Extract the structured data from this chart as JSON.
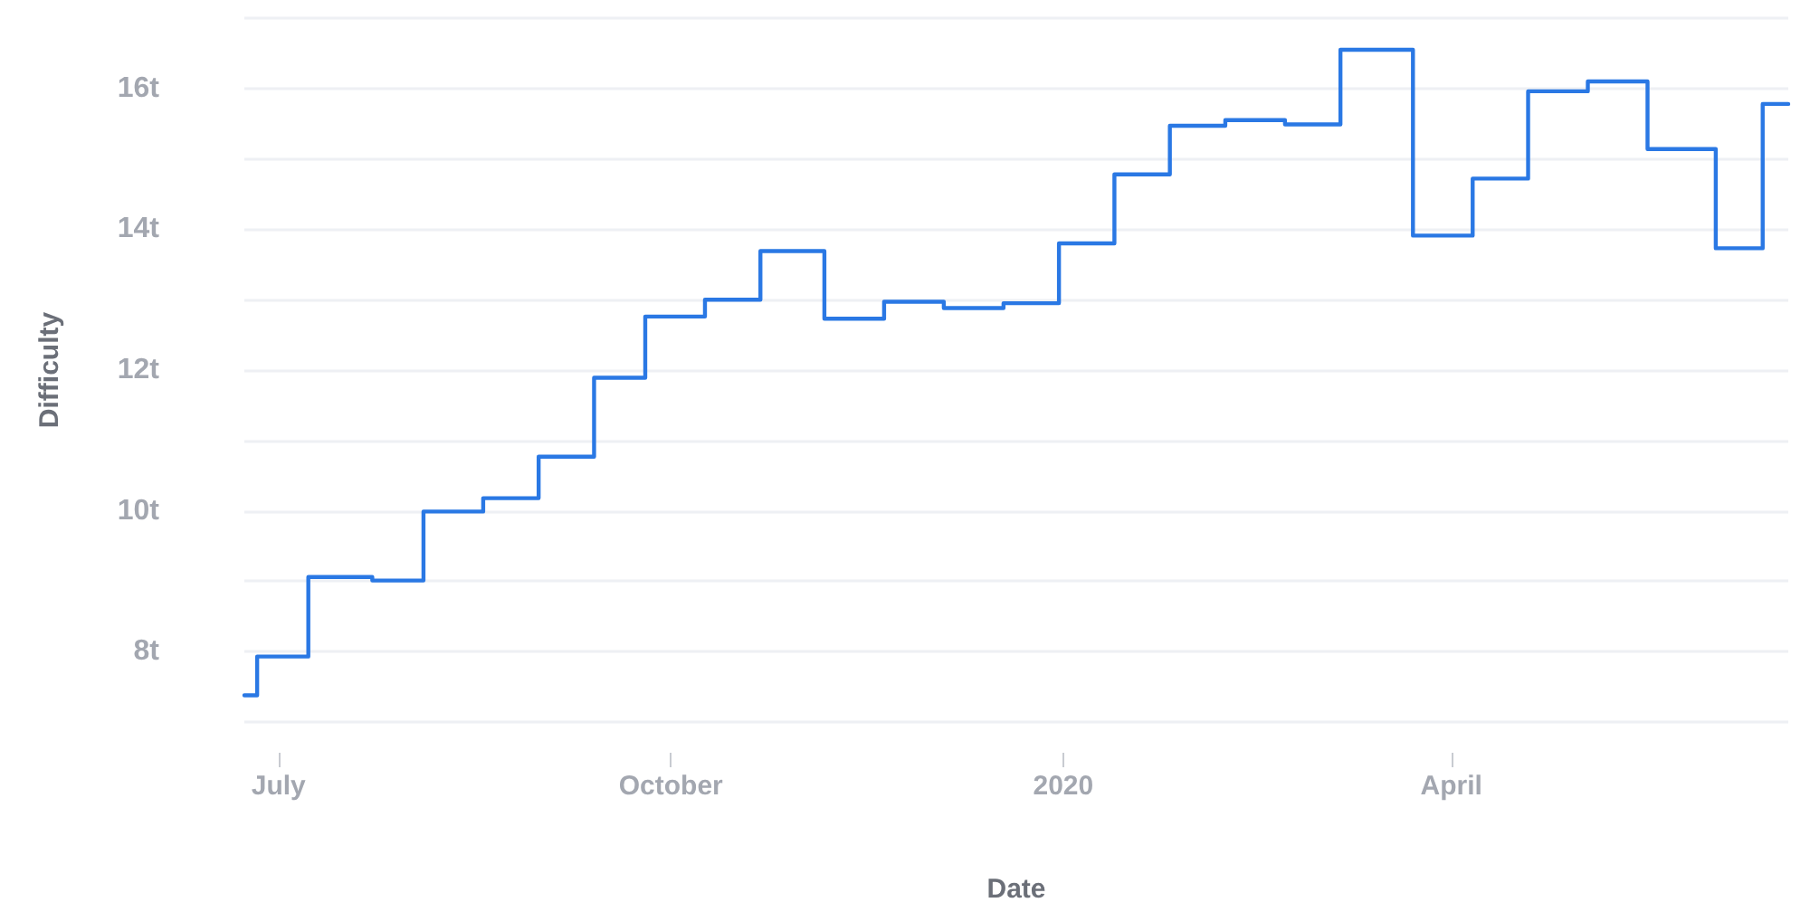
{
  "chart_data": {
    "type": "step",
    "xlabel": "Date",
    "ylabel": "Difficulty",
    "x": [
      "2019-06-23",
      "2019-06-26",
      "2019-07-08",
      "2019-07-23",
      "2019-08-04",
      "2019-08-18",
      "2019-08-31",
      "2019-09-13",
      "2019-09-25",
      "2019-10-09",
      "2019-10-22",
      "2019-11-06",
      "2019-11-20",
      "2019-12-04",
      "2019-12-18",
      "2019-12-31",
      "2020-01-13",
      "2020-01-26",
      "2020-02-08",
      "2020-02-22",
      "2020-03-06",
      "2020-03-23",
      "2020-04-06",
      "2020-04-19",
      "2020-05-03",
      "2020-05-17",
      "2020-06-02",
      "2020-06-13",
      "2020-06-19"
    ],
    "series": [
      {
        "color": "#2a78e4",
        "values": [
          7.38,
          7.93,
          9.06,
          9.01,
          9.99,
          10.18,
          10.77,
          11.89,
          12.76,
          13.0,
          13.69,
          12.73,
          12.97,
          12.88,
          12.95,
          13.8,
          14.78,
          15.47,
          15.55,
          15.49,
          16.55,
          13.91,
          14.72,
          15.96,
          16.1,
          15.14,
          13.73,
          15.78,
          15.78
        ]
      }
    ],
    "xlim": [
      "2019-06-23",
      "2020-06-19"
    ],
    "xticks": [
      {
        "value": "2019-07-01",
        "label": "July"
      },
      {
        "value": "2019-10-01",
        "label": "October"
      },
      {
        "value": "2020-01-01",
        "label": "2020"
      },
      {
        "value": "2020-04-01",
        "label": "April"
      }
    ],
    "ylim": [
      7,
      17
    ],
    "yticks": [
      {
        "value": 7,
        "label": null
      },
      {
        "value": 8,
        "label": "8t"
      },
      {
        "value": 9,
        "label": null
      },
      {
        "value": 10,
        "label": "10t"
      },
      {
        "value": 11,
        "label": null
      },
      {
        "value": 12,
        "label": "12t"
      },
      {
        "value": 13,
        "label": null
      },
      {
        "value": 14,
        "label": "14t"
      },
      {
        "value": 15,
        "label": null
      },
      {
        "value": 16,
        "label": "16t"
      },
      {
        "value": 17,
        "label": null
      }
    ],
    "grid": "y",
    "marker": "none",
    "line_style": "solid"
  }
}
